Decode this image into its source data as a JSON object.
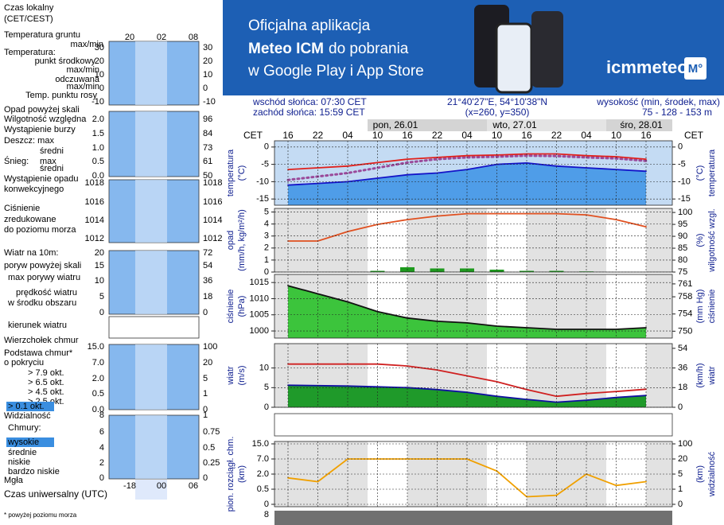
{
  "banner": {
    "line1": "Oficjalna aplikacja",
    "line2_bold": "Meteo ICM",
    "line2_rest": "do pobrania",
    "line3": "w Google Play i App Store",
    "logo": "icmmeteo",
    "logo_badge": "M°"
  },
  "info": {
    "sunrise": "wschód słońca: 07:30 CET",
    "sunset": "zachód słońca: 15:59 CET",
    "coords": "21°40'27\"E, 54°10'38\"N",
    "grid": "(x=260,  y=350)",
    "elevation_label": "wysokość (min, środek, max)",
    "elevation": "75 - 128 - 153 m"
  },
  "time_axis": {
    "label": "CET",
    "hours": [
      "16",
      "22",
      "04",
      "10",
      "16",
      "22",
      "04",
      "10",
      "16",
      "22",
      "04",
      "10",
      "16"
    ],
    "dates": [
      "pon, 26.01",
      "wto, 27.01",
      "śro, 28.01"
    ]
  },
  "legend": {
    "local_time": [
      "Czas lokalny",
      "(CET/CEST)"
    ],
    "local_hours": [
      "20",
      "02",
      "08"
    ],
    "items": [
      "Temperatura gruntu",
      "max/min",
      "Temperatura:",
      "punkt środkowy",
      "max/min",
      "odczuwana",
      "max/min",
      "Temp. punktu rosy",
      "Opad powyżej skali",
      "Wilgotność względna",
      "Wystąpienie burzy",
      "Deszcz: max",
      "średni",
      "Śnieg:",
      "max",
      "średni",
      "Wystąpienie opadu",
      "konwekcyjnego",
      "Ciśnienie",
      "zredukowane",
      "do poziomu morza",
      "Wiatr na 10m:",
      "poryw powyżej skali",
      "max porywy wiatru",
      "prędkość wiatru",
      "w środku obszaru",
      "kierunek wiatru",
      "Wierzchołek chmur",
      "Podstawa chmur*",
      "o pokryciu",
      "> 7.9 okt.",
      "> 6.5 okt.",
      "> 4.5 okt.",
      "> 2.5 okt.",
      "> 0.1 okt.",
      "Widzialność",
      "Chmury:",
      "wysokie",
      "średnie",
      "niskie",
      "bardzo niskie",
      "Mgła"
    ],
    "mini_ticks": [
      {
        "left": [
          "30",
          "20",
          "10",
          "0",
          "-10"
        ],
        "right": [
          "30",
          "20",
          "10",
          "0",
          "-10"
        ]
      },
      {
        "left": [
          "2.0",
          "1.5",
          "1.0",
          "0.5",
          "0.0"
        ],
        "right": [
          "96",
          "84",
          "73",
          "61",
          "50"
        ]
      },
      {
        "left": [
          "1018",
          "1016",
          "1014",
          "1012"
        ],
        "right": [
          "1018",
          "1016",
          "1014",
          "1012"
        ]
      },
      {
        "left": [
          "20",
          "15",
          "10",
          "5",
          "0"
        ],
        "right": [
          "72",
          "54",
          "36",
          "18",
          "0"
        ]
      },
      {
        "left": [
          "15.0",
          "7.0",
          "2.0",
          "0.5",
          "0.0"
        ],
        "right": [
          "100",
          "20",
          "5",
          "1",
          "0"
        ]
      },
      {
        "left": [
          "8",
          "6",
          "4",
          "2",
          "0"
        ],
        "right": [
          "1",
          "0.75",
          "0.5",
          "0.25",
          "0"
        ]
      }
    ],
    "utc_hours": [
      "-18",
      "00",
      "06"
    ],
    "utc_label": "Czas uniwersalny (UTC)",
    "footnote": "* powyżej poziomu morza"
  },
  "bottom_strip": {
    "ytick": "8"
  },
  "chart_data": [
    {
      "type": "line",
      "ylabel": [
        "temperatura",
        "(°C)"
      ],
      "y2label": [
        "(°C)",
        "temperatura"
      ],
      "ylim": [
        -16.8,
        1.8
      ],
      "yticks": [
        0,
        -5,
        -10,
        -15
      ],
      "y2lim": [
        -16.8,
        1.8
      ],
      "y2ticks": [
        0,
        -5,
        -10,
        -15
      ],
      "grid": true,
      "series": [
        {
          "name": "odczuwana",
          "color": "#1414c8",
          "fill": "#4f9de8",
          "values": [
            -11,
            -10.5,
            -10,
            -9,
            -8,
            -7.5,
            -6.5,
            -5,
            -4.6,
            -5.5,
            -6,
            -6.5,
            -7
          ]
        },
        {
          "name": "Temp. punktu rosy",
          "color": "#9a4a9a",
          "dash": true,
          "values": [
            -9.5,
            -8.5,
            -7.5,
            -6,
            -4.5,
            -3.5,
            -3,
            -2.8,
            -2.5,
            -2.6,
            -3,
            -3.3,
            -4
          ]
        },
        {
          "name": "punkt środkowy",
          "color": "#e0201b",
          "values": [
            -6.5,
            -6,
            -5.5,
            -4.5,
            -3.5,
            -3,
            -2.5,
            -2.3,
            -2,
            -2,
            -2.5,
            -2.8,
            -3.5
          ]
        }
      ]
    },
    {
      "type": "combo",
      "ylabel": [
        "opad",
        "(mm/h, kg/m²/h)"
      ],
      "y2label": [
        "(%)",
        "wilgotność wzgl."
      ],
      "ylim": [
        0,
        5.3
      ],
      "yticks": [
        0,
        1,
        2,
        3,
        4,
        5
      ],
      "y2lim": [
        75,
        101.7
      ],
      "y2ticks": [
        75,
        80,
        85,
        90,
        95,
        100
      ],
      "grid": true,
      "series": [
        {
          "name": "Deszcz",
          "color": "#1e9a1e",
          "values": [
            0,
            0,
            0,
            0.1,
            0.4,
            0.3,
            0.3,
            0.2,
            0.1,
            0.1,
            0.05,
            0,
            0
          ]
        },
        {
          "name": "Wilgotność względna",
          "color": "#e05020",
          "axis": "y2",
          "values": [
            88,
            88,
            92,
            95,
            97,
            98.5,
            99.5,
            99.5,
            99.5,
            99.5,
            99,
            97,
            94
          ]
        }
      ]
    },
    {
      "type": "line",
      "ylabel": [
        "ciśnienie",
        "(hPa)"
      ],
      "y2label": [
        "(mm Hg)",
        "ciśnienie"
      ],
      "ylim": [
        997.8,
        1017.5
      ],
      "yticks": [
        1000,
        1005,
        1010,
        1015
      ],
      "y2lim": [
        748.4,
        763.2
      ],
      "y2ticks": [
        750,
        754,
        758,
        761
      ],
      "grid": true,
      "series": [
        {
          "name": "Ciśnienie",
          "color": "#111111",
          "fill": "#3cc43c",
          "values": [
            1014,
            1011.5,
            1009,
            1006,
            1004,
            1003,
            1002.5,
            1001.5,
            1001,
            1000.5,
            1000.5,
            1000.5,
            1001
          ]
        }
      ]
    },
    {
      "type": "line",
      "ylabel": [
        "wiatr",
        "(m/s)"
      ],
      "y2label": [
        "(km/h)",
        "wiatr"
      ],
      "ylim": [
        0,
        16.2
      ],
      "yticks": [
        0,
        5,
        10
      ],
      "y2lim": [
        0,
        58.3
      ],
      "y2ticks": [
        0,
        18,
        36,
        54
      ],
      "grid": true,
      "series": [
        {
          "name": "prędkość wiatru",
          "color": "#1010a0",
          "fill": "#1f9a2a",
          "values": [
            5.6,
            5.5,
            5.4,
            5.2,
            5,
            4.5,
            3.8,
            2.8,
            2,
            1.3,
            1.8,
            2.5,
            3
          ]
        },
        {
          "name": "max porywy wiatru",
          "color": "#d02020",
          "values": [
            11,
            11,
            11,
            11,
            10.5,
            9.5,
            8,
            6.5,
            4.5,
            2.8,
            3.5,
            4,
            4.6
          ]
        }
      ]
    },
    {
      "type": "line",
      "ylabel": [
        "pion. rozciągł. chm.",
        "(km)"
      ],
      "y2label": [
        "(km)",
        "widzialność"
      ],
      "yscale": "piecewise",
      "ylim": [
        0,
        15
      ],
      "yticks": [
        0,
        {
          "value": 0.5,
          "label": "0.5"
        },
        {
          "value": 2,
          "label": "2.0"
        },
        {
          "value": 7,
          "label": "7.0"
        },
        {
          "value": 15,
          "label": "15.0"
        }
      ],
      "y2lim": [
        0,
        100
      ],
      "y2ticks": [
        0,
        1,
        5,
        20,
        100
      ],
      "grid": true,
      "series": [
        {
          "name": "Widzialność",
          "color": "#f0a000",
          "axis": "y2",
          "values": [
            4,
            3,
            20,
            20,
            20,
            20,
            20,
            8,
            0.5,
            0.6,
            5,
            2,
            3
          ]
        }
      ]
    }
  ]
}
